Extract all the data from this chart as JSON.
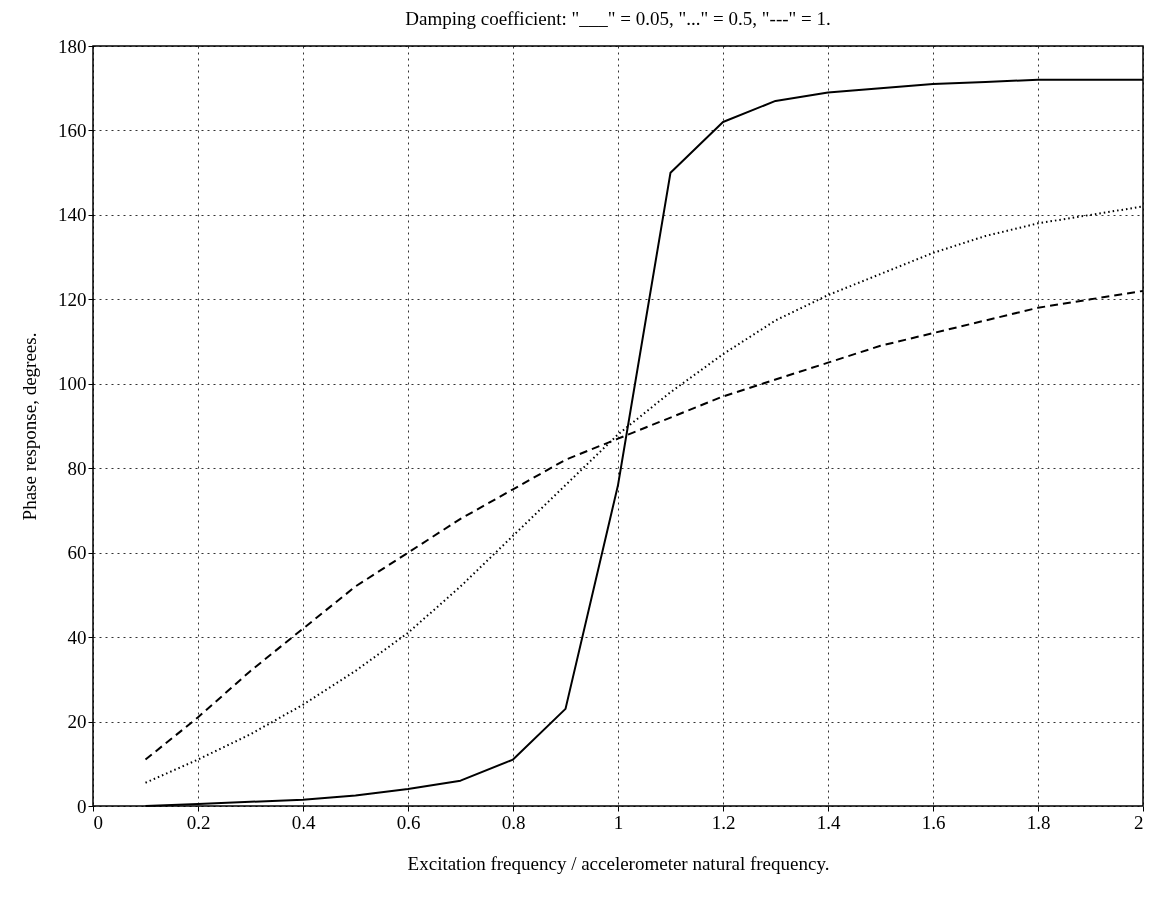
{
  "chart_data": {
    "type": "line",
    "title": "Damping coefficient: \"___\" = 0.05, \"...\" = 0.5, \"---\" = 1.",
    "xlabel": "Excitation frequency / accelerometer natural frequency.",
    "ylabel": "Phase response, degrees.",
    "x": [
      0.1,
      0.2,
      0.3,
      0.4,
      0.5,
      0.6,
      0.7,
      0.8,
      0.9,
      1.0,
      1.1,
      1.2,
      1.3,
      1.4,
      1.5,
      1.6,
      1.7,
      1.8,
      1.9,
      2.0
    ],
    "series": [
      {
        "color": "#000000",
        "line_style": "solid",
        "values": [
          0,
          0.5,
          1,
          1.5,
          2.5,
          4,
          6,
          11,
          23,
          76,
          150,
          162,
          167,
          169,
          170,
          171,
          171.5,
          172,
          172,
          172
        ]
      },
      {
        "color": "#000000",
        "line_style": "dotted",
        "values": [
          5.5,
          11,
          17,
          24,
          32,
          41,
          52,
          64,
          76,
          88,
          98,
          107,
          115,
          121,
          126,
          131,
          135,
          138,
          140,
          142
        ]
      },
      {
        "color": "#000000",
        "line_style": "dashed",
        "values": [
          11,
          21,
          32,
          42,
          52,
          60,
          68,
          75,
          82,
          87,
          92,
          97,
          101,
          105,
          109,
          112,
          115,
          118,
          120,
          122
        ]
      }
    ],
    "xlim": [
      0,
      2
    ],
    "xticks": [
      0,
      0.2,
      0.4,
      0.6,
      0.8,
      1,
      1.2,
      1.4,
      1.6,
      1.8,
      2
    ],
    "ylim": [
      0,
      180
    ],
    "yticks": [
      0,
      20,
      40,
      60,
      80,
      100,
      120,
      140,
      160,
      180
    ],
    "grid": true,
    "marker": "none"
  }
}
